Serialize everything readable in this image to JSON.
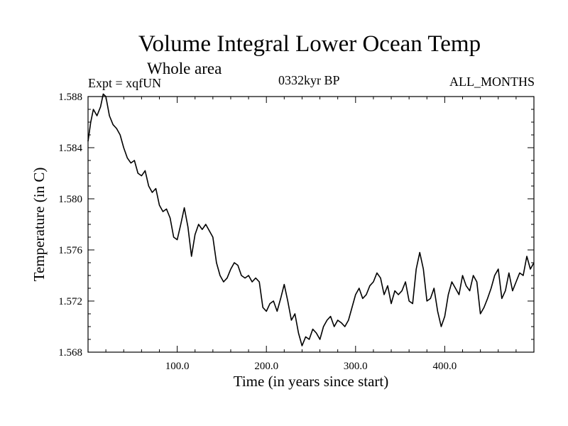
{
  "chart_data": {
    "type": "line",
    "title": "Volume Integral Lower Ocean Temp",
    "subtitle": "Whole area",
    "left_label": "Expt = xqfUN",
    "center_label": "0332kyr BP",
    "right_label": "ALL_MONTHS",
    "xlabel": "Time (in years since start)",
    "ylabel": "Temperature (in C)",
    "xlim": [
      0,
      500
    ],
    "ylim": [
      1.568,
      1.588
    ],
    "x_ticks": [
      100,
      200,
      300,
      400
    ],
    "x_tick_labels": [
      "100.0",
      "200.0",
      "300.0",
      "400.0"
    ],
    "y_ticks": [
      1.568,
      1.572,
      1.576,
      1.58,
      1.584,
      1.588
    ],
    "y_tick_labels": [
      "1.568",
      "1.572",
      "1.576",
      "1.580",
      "1.584",
      "1.588"
    ],
    "grid": false,
    "line_color": "#000000",
    "series": [
      {
        "name": "xqfUN",
        "x": [
          0,
          3,
          6,
          10,
          14,
          17,
          20,
          24,
          28,
          32,
          36,
          40,
          44,
          48,
          52,
          56,
          60,
          64,
          68,
          72,
          76,
          80,
          84,
          88,
          92,
          96,
          100,
          104,
          108,
          112,
          116,
          120,
          124,
          128,
          132,
          136,
          140,
          144,
          148,
          152,
          156,
          160,
          164,
          168,
          172,
          176,
          180,
          184,
          188,
          192,
          196,
          200,
          204,
          208,
          212,
          216,
          220,
          224,
          228,
          232,
          236,
          240,
          244,
          248,
          252,
          256,
          260,
          264,
          268,
          272,
          276,
          280,
          284,
          288,
          292,
          296,
          300,
          304,
          308,
          312,
          316,
          320,
          324,
          328,
          332,
          336,
          340,
          344,
          348,
          352,
          356,
          360,
          364,
          368,
          372,
          376,
          380,
          384,
          388,
          392,
          396,
          400,
          404,
          408,
          412,
          416,
          420,
          424,
          428,
          432,
          436,
          440,
          444,
          448,
          452,
          456,
          460,
          464,
          468,
          472,
          476,
          480,
          484,
          488,
          492,
          496,
          500
        ],
        "values": [
          1.5845,
          1.586,
          1.587,
          1.5865,
          1.5872,
          1.5882,
          1.588,
          1.5865,
          1.5858,
          1.5855,
          1.585,
          1.584,
          1.5832,
          1.5828,
          1.583,
          1.582,
          1.5818,
          1.5822,
          1.581,
          1.5805,
          1.5808,
          1.5795,
          1.579,
          1.5792,
          1.5785,
          1.577,
          1.5768,
          1.578,
          1.5793,
          1.5778,
          1.5755,
          1.5772,
          1.578,
          1.5776,
          1.578,
          1.5775,
          1.577,
          1.575,
          1.574,
          1.5735,
          1.5738,
          1.5745,
          1.575,
          1.5748,
          1.574,
          1.5738,
          1.574,
          1.5735,
          1.5738,
          1.5735,
          1.5715,
          1.5712,
          1.5718,
          1.572,
          1.5712,
          1.5722,
          1.5733,
          1.572,
          1.5705,
          1.571,
          1.5695,
          1.5685,
          1.5692,
          1.569,
          1.5698,
          1.5695,
          1.569,
          1.57,
          1.5705,
          1.5708,
          1.57,
          1.5705,
          1.5703,
          1.57,
          1.5705,
          1.5715,
          1.5725,
          1.573,
          1.5722,
          1.5725,
          1.5732,
          1.5735,
          1.5742,
          1.5738,
          1.5725,
          1.5732,
          1.5718,
          1.5728,
          1.5725,
          1.5728,
          1.5735,
          1.572,
          1.5718,
          1.5745,
          1.5758,
          1.5745,
          1.572,
          1.5722,
          1.573,
          1.5712,
          1.57,
          1.5708,
          1.5725,
          1.5735,
          1.573,
          1.5725,
          1.574,
          1.5732,
          1.5728,
          1.574,
          1.5735,
          1.571,
          1.5715,
          1.5722,
          1.573,
          1.574,
          1.5745,
          1.5722,
          1.5728,
          1.5742,
          1.5728,
          1.5735,
          1.5742,
          1.574,
          1.5755,
          1.5745,
          1.575
        ]
      }
    ]
  }
}
